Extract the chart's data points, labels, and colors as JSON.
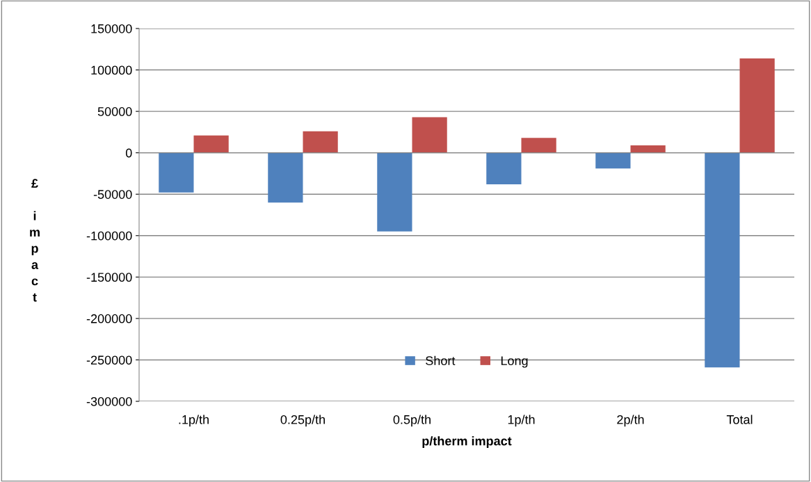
{
  "chart_data": {
    "type": "bar",
    "xlabel": "p/therm impact",
    "ylabel": "£ impact",
    "categories": [
      ".1p/th",
      "0.25p/th",
      "0.5p/th",
      "1p/th",
      "2p/th",
      "Total"
    ],
    "series": [
      {
        "name": "Short",
        "color": "#4f81bd",
        "values": [
          -48000,
          -60000,
          -95000,
          -38000,
          -19000,
          -259000
        ]
      },
      {
        "name": "Long",
        "color": "#c0504d",
        "values": [
          21000,
          26000,
          43000,
          18000,
          9000,
          114000
        ]
      }
    ],
    "ylim": [
      -300000,
      150000
    ],
    "yticks": [
      -300000,
      -250000,
      -200000,
      -150000,
      -100000,
      -50000,
      0,
      50000,
      100000,
      150000
    ],
    "grid": "y",
    "legend": "bottom"
  }
}
